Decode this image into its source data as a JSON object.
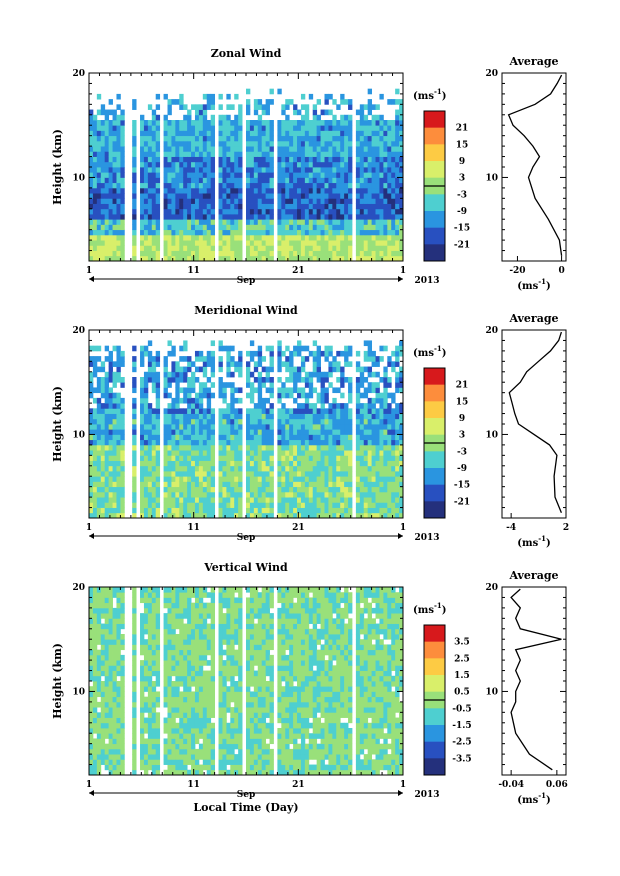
{
  "chart_data": [
    {
      "type": "heatmap",
      "title": "Zonal Wind",
      "ylabel": "Height (km)",
      "x_ticks": [
        "1",
        "11",
        "21",
        "1"
      ],
      "x_month": "Sep",
      "year": "2013",
      "ylim": [
        2,
        20
      ],
      "y_ticks": [
        10,
        20
      ],
      "colorbar": {
        "unit": "(ms",
        "exp": "-1",
        "unit_tail": ")",
        "ticks": [
          "21",
          "15",
          "9",
          "3",
          "-3",
          "-9",
          "-15",
          "-21"
        ],
        "range": [
          -24,
          24
        ]
      },
      "colors": [
        "#d7191c",
        "#fd8d3c",
        "#fdcb44",
        "#d9ef6a",
        "#99e07a",
        "#4ecfd0",
        "#2a95e0",
        "#2850c0",
        "#24307c"
      ],
      "average": {
        "title": "Average",
        "xlim": [
          -27,
          2
        ],
        "x_ticks": [
          "-20",
          "0"
        ],
        "xunit": "(ms",
        "xexp": "-1",
        "xunit_tail": ")",
        "height": [
          2.5,
          4,
          6,
          8,
          10,
          11,
          12,
          13,
          14,
          15,
          16,
          17,
          18,
          19,
          19.8
        ],
        "value": [
          0,
          -1,
          -6,
          -12,
          -15,
          -13,
          -10,
          -13,
          -17,
          -22,
          -24,
          -12,
          -5,
          -2,
          0
        ]
      }
    },
    {
      "type": "heatmap",
      "title": "Meridional Wind",
      "ylabel": "Height (km)",
      "x_ticks": [
        "1",
        "11",
        "21",
        "1"
      ],
      "x_month": "Sep",
      "year": "2013",
      "ylim": [
        2,
        20
      ],
      "y_ticks": [
        10,
        20
      ],
      "colorbar": {
        "unit": "(ms",
        "exp": "-1",
        "unit_tail": ")",
        "ticks": [
          "21",
          "15",
          "9",
          "3",
          "-3",
          "-9",
          "-15",
          "-21"
        ],
        "range": [
          -24,
          24
        ]
      },
      "colors": [
        "#d7191c",
        "#fd8d3c",
        "#fdcb44",
        "#d9ef6a",
        "#99e07a",
        "#4ecfd0",
        "#2a95e0",
        "#2850c0",
        "#24307c"
      ],
      "average": {
        "title": "Average",
        "xlim": [
          -5,
          2
        ],
        "x_ticks": [
          "-4",
          "2"
        ],
        "xunit": "(ms",
        "xexp": "-1",
        "xunit_tail": ")",
        "height": [
          2.5,
          4,
          6,
          8,
          9,
          10,
          11,
          12,
          13,
          14,
          15,
          16,
          17,
          18,
          19,
          19.8
        ],
        "value": [
          1.5,
          0.8,
          0.7,
          1.0,
          0.2,
          -1.5,
          -3.2,
          -3.6,
          -3.9,
          -4.2,
          -3.0,
          -2.3,
          -1.0,
          0.3,
          1.2,
          1.5
        ]
      }
    },
    {
      "type": "heatmap",
      "title": "Vertical Wind",
      "ylabel": "Height (km)",
      "xlabel": "Local Time (Day)",
      "x_ticks": [
        "1",
        "11",
        "21",
        "1"
      ],
      "x_month": "Sep",
      "year": "2013",
      "ylim": [
        2,
        20
      ],
      "y_ticks": [
        10,
        20
      ],
      "colorbar": {
        "unit": "(ms",
        "exp": "-1",
        "unit_tail": ")",
        "ticks": [
          "3.5",
          "2.5",
          "1.5",
          "0.5",
          "-0.5",
          "-1.5",
          "-2.5",
          "-3.5"
        ],
        "range": [
          -4,
          4
        ]
      },
      "colors": [
        "#d7191c",
        "#fd8d3c",
        "#fdcb44",
        "#d9ef6a",
        "#99e07a",
        "#4ecfd0",
        "#2a95e0",
        "#2850c0",
        "#24307c"
      ],
      "average": {
        "title": "Average",
        "xlim": [
          -0.06,
          0.08
        ],
        "x_ticks": [
          "-0.04",
          "0.06"
        ],
        "xunit": "(ms",
        "xexp": "-1",
        "xunit_tail": ")",
        "height": [
          2.5,
          4,
          6,
          8,
          9,
          10,
          11,
          12,
          13,
          14,
          15,
          16,
          17,
          18,
          19,
          19.8
        ],
        "value": [
          0.05,
          0.0,
          -0.03,
          -0.04,
          -0.03,
          -0.03,
          -0.02,
          -0.03,
          -0.02,
          -0.03,
          0.07,
          -0.02,
          -0.03,
          -0.02,
          -0.04,
          -0.02
        ]
      }
    }
  ]
}
